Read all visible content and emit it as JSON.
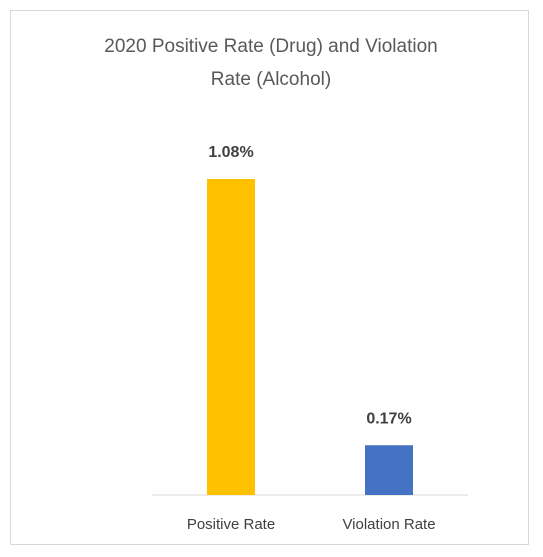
{
  "chart_data": {
    "type": "bar",
    "title": "2020  Positive Rate (Drug) and Violation Rate (Alcohol)",
    "categories": [
      "Positive Rate",
      "Violation Rate"
    ],
    "values": [
      1.08,
      0.17
    ],
    "value_labels": [
      "1.08%",
      "0.17%"
    ],
    "colors": [
      "#ffc000",
      "#4472c4"
    ]
  }
}
